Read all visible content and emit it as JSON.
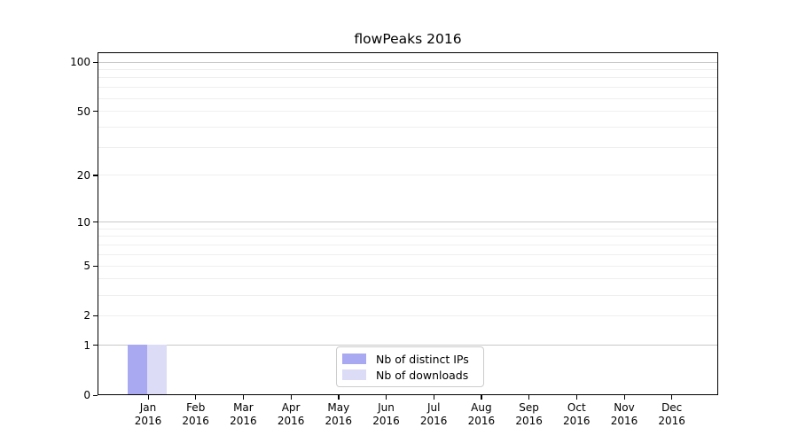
{
  "title": "flowPeaks 2016",
  "chart_data": {
    "type": "bar",
    "title": "flowPeaks 2016",
    "categories": [
      "Jan 2016",
      "Feb 2016",
      "Mar 2016",
      "Apr 2016",
      "May 2016",
      "Jun 2016",
      "Jul 2016",
      "Aug 2016",
      "Sep 2016",
      "Oct 2016",
      "Nov 2016",
      "Dec 2016"
    ],
    "series": [
      {
        "name": "Nb of distinct IPs",
        "color": "#a9a9f1",
        "values": [
          1,
          0,
          0,
          0,
          0,
          0,
          0,
          0,
          0,
          0,
          0,
          0
        ]
      },
      {
        "name": "Nb of downloads",
        "color": "#dcdcf6",
        "values": [
          1,
          0,
          0,
          0,
          0,
          0,
          0,
          0,
          0,
          0,
          0,
          0
        ]
      }
    ],
    "ylabel": "",
    "xlabel": "",
    "yticks": [
      0,
      1,
      2,
      5,
      10,
      20,
      50,
      100
    ],
    "major_gridlines": [
      1,
      10,
      100
    ],
    "minor_gridlines": [
      2,
      3,
      4,
      5,
      6,
      7,
      8,
      9,
      20,
      30,
      40,
      50,
      60,
      70,
      80,
      90
    ],
    "yscale": "log1p",
    "ylim": [
      0,
      113
    ],
    "grid": "horizontal",
    "legend_position": "lower center",
    "colors": {
      "major_grid": "#c8c8c8",
      "minor_grid": "#efefef",
      "spine": "#000000",
      "background": "#ffffff"
    }
  }
}
